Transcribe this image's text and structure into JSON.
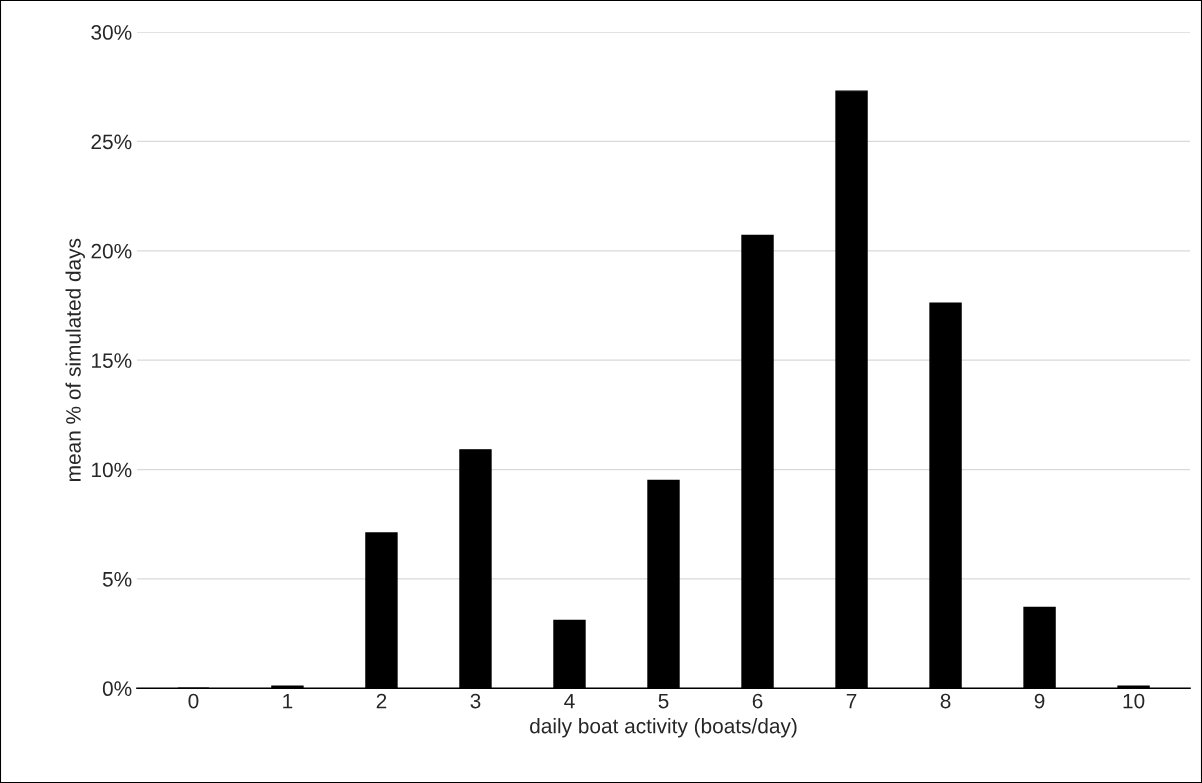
{
  "chart_data": {
    "type": "bar",
    "xlabel": "daily boat activity (boats/day)",
    "ylabel": "mean % of simulated days",
    "categories": [
      "0",
      "1",
      "2",
      "3",
      "4",
      "5",
      "6",
      "7",
      "8",
      "9",
      "10"
    ],
    "values": [
      0,
      0.1,
      7.1,
      10.9,
      3.1,
      9.5,
      20.7,
      27.3,
      17.6,
      3.7,
      0.1
    ],
    "color": "#000000",
    "ylim": [
      0,
      30
    ],
    "yticks": [
      {
        "value": 0,
        "label": "0%"
      },
      {
        "value": 5,
        "label": "5%"
      },
      {
        "value": 10,
        "label": "10%"
      },
      {
        "value": 15,
        "label": "15%"
      },
      {
        "value": 20,
        "label": "20%"
      },
      {
        "value": 25,
        "label": "25%"
      },
      {
        "value": 30,
        "label": "30%"
      }
    ],
    "grid": "y"
  }
}
